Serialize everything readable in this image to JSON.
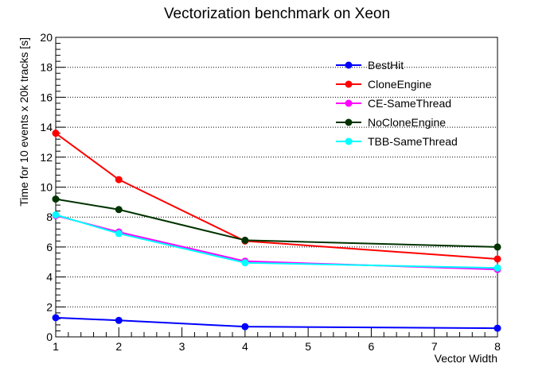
{
  "chart_data": {
    "type": "line",
    "title": "Vectorization benchmark on Xeon",
    "xlabel": "Vector Width",
    "ylabel": "Time for 10 events x 20k tracks [s]",
    "xlim": [
      1,
      8
    ],
    "ylim": [
      0,
      20
    ],
    "x_ticks": [
      1,
      2,
      3,
      4,
      5,
      6,
      7,
      8
    ],
    "y_ticks": [
      0,
      2,
      4,
      6,
      8,
      10,
      12,
      14,
      16,
      18,
      20
    ],
    "grid": "horizontal dotted",
    "legend_position": "top-right",
    "series": [
      {
        "name": "BestHit",
        "color": "#0000ff",
        "x": [
          1,
          2,
          4,
          8
        ],
        "y": [
          1.28,
          1.1,
          0.68,
          0.58
        ],
        "yerr": [
          0.2,
          0.1,
          0.05,
          0.05
        ]
      },
      {
        "name": "CloneEngine",
        "color": "#ff0000",
        "x": [
          1,
          2,
          4,
          8
        ],
        "y": [
          13.6,
          10.5,
          6.4,
          5.2
        ],
        "yerr": [
          0.25,
          0.15,
          0.1,
          0.1
        ]
      },
      {
        "name": "CE-SameThread",
        "color": "#ff00ff",
        "x": [
          1,
          2,
          4,
          8
        ],
        "y": [
          8.1,
          7.0,
          5.05,
          4.5
        ],
        "yerr": [
          0.2,
          0.15,
          0.1,
          0.1
        ]
      },
      {
        "name": "NoCloneEngine",
        "color": "#003300",
        "x": [
          1,
          2,
          4,
          8
        ],
        "y": [
          9.2,
          8.5,
          6.45,
          6.0
        ],
        "yerr": [
          0.25,
          0.15,
          0.1,
          0.1
        ]
      },
      {
        "name": "TBB-SameThread",
        "color": "#00ffff",
        "x": [
          1,
          2,
          4,
          8
        ],
        "y": [
          8.15,
          6.9,
          4.95,
          4.6
        ],
        "yerr": [
          0.2,
          0.15,
          0.1,
          0.1
        ]
      }
    ]
  }
}
